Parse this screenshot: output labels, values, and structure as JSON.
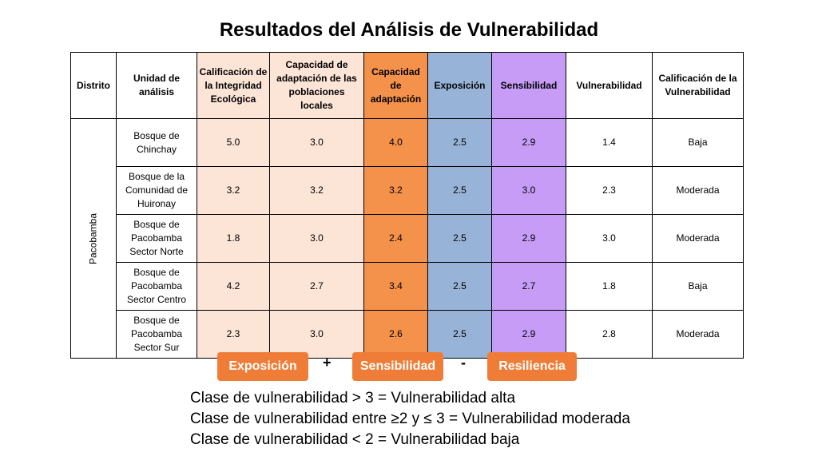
{
  "title": "Resultados del Análisis de Vulnerabilidad",
  "table": {
    "headers": [
      "Distrito",
      "Unidad de análisis",
      "Calificación de la Integridad Ecológica",
      "Capacidad de adaptación de las poblaciones locales",
      "Capacidad de adaptación",
      "Exposición",
      "Sensibilidad",
      "Vulnerabilidad",
      "Calificación de la Vulnerabilidad"
    ],
    "district": "Pacobamba",
    "rows": [
      {
        "unit": "Bosque de Chinchay",
        "integridad": "5.0",
        "capacidad_poblaciones": "3.0",
        "capacidad_adaptacion": "4.0",
        "exposicion": "2.5",
        "sensibilidad": "2.9",
        "vulnerabilidad": "1.4",
        "calificacion": "Baja"
      },
      {
        "unit": "Bosque de la Comunidad de Huironay",
        "integridad": "3.2",
        "capacidad_poblaciones": "3.2",
        "capacidad_adaptacion": "3.2",
        "exposicion": "2.5",
        "sensibilidad": "3.0",
        "vulnerabilidad": "2.3",
        "calificacion": "Moderada"
      },
      {
        "unit": "Bosque de Pacobamba Sector Norte",
        "integridad": "1.8",
        "capacidad_poblaciones": "3.0",
        "capacidad_adaptacion": "2.4",
        "exposicion": "2.5",
        "sensibilidad": "2.9",
        "vulnerabilidad": "3.0",
        "calificacion": "Moderada"
      },
      {
        "unit": "Bosque de Pacobamba Sector Centro",
        "integridad": "4.2",
        "capacidad_poblaciones": "2.7",
        "capacidad_adaptacion": "3.4",
        "exposicion": "2.5",
        "sensibilidad": "2.7",
        "vulnerabilidad": "1.8",
        "calificacion": "Baja"
      },
      {
        "unit": "Bosque de Pacobamba Sector Sur",
        "integridad": "2.3",
        "capacidad_poblaciones": "3.0",
        "capacidad_adaptacion": "2.6",
        "exposicion": "2.5",
        "sensibilidad": "2.9",
        "vulnerabilidad": "2.8",
        "calificacion": "Moderada"
      }
    ]
  },
  "formula": {
    "terms": [
      "Exposición",
      "Sensibilidad",
      "Resiliencia"
    ],
    "operators": [
      "+",
      "-"
    ],
    "button_color": "#ef7d38"
  },
  "legend": [
    "Clase de vulnerabilidad > 3 = Vulnerabilidad alta",
    "Clase de vulnerabilidad entre ≥2 y ≤ 3 = Vulnerabilidad moderada",
    "Clase de vulnerabilidad < 2 = Vulnerabilidad baja"
  ],
  "colors": {
    "peach": "#fce4d6",
    "orange": "#f4914a",
    "blue": "#97b4d8",
    "purple": "#c79cf7"
  }
}
